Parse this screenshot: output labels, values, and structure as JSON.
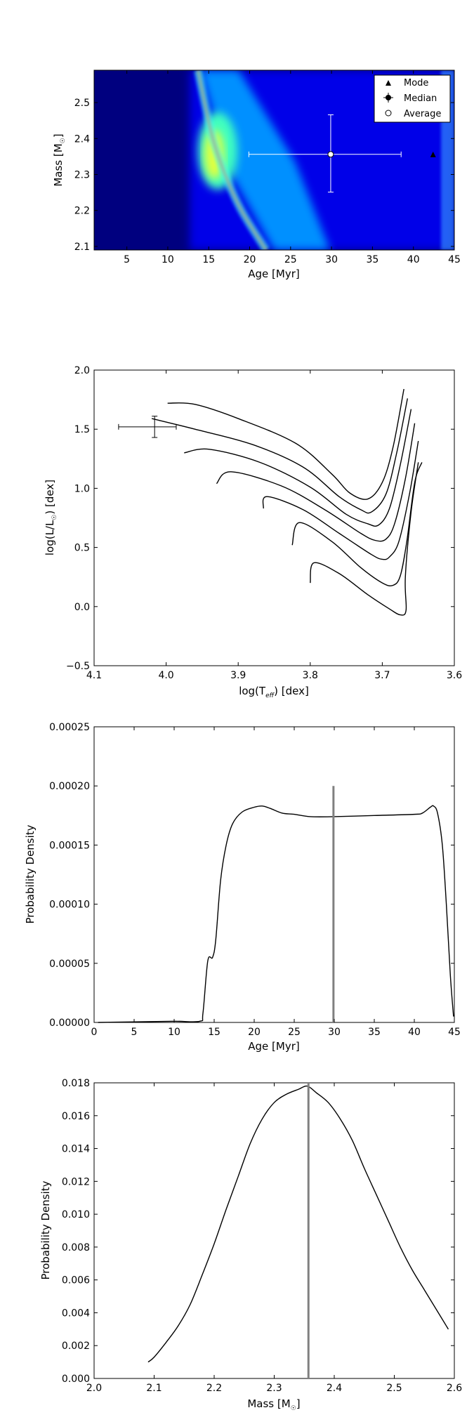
{
  "figure": {
    "background": "#ffffff"
  },
  "chart_data": [
    {
      "type": "heatmap",
      "xlabel": "Age [Myr]",
      "ylabel_main": "Mass [M",
      "ylabel_sub": "☉",
      "ylabel_close": "]",
      "xlim": [
        1,
        45
      ],
      "ylim": [
        2.09,
        2.59
      ],
      "xticks": [
        5,
        10,
        15,
        20,
        25,
        30,
        35,
        40,
        45
      ],
      "xtick_labels": [
        "5",
        "10",
        "15",
        "20",
        "25",
        "30",
        "35",
        "40",
        "45"
      ],
      "yticks": [
        2.1,
        2.2,
        2.3,
        2.4,
        2.5
      ],
      "ytick_labels": [
        "2.1",
        "2.2",
        "2.3",
        "2.4",
        "2.5"
      ],
      "colormap": [
        "#00007f",
        "#0000ff",
        "#0080ff",
        "#00ffff",
        "#80ff80",
        "#ffff00",
        "#ff8000",
        "#ff0000",
        "#7f0000"
      ],
      "ridge": [
        [
          13.7,
          2.59
        ],
        [
          14.5,
          2.5
        ],
        [
          15.5,
          2.4
        ],
        [
          17.0,
          2.3
        ],
        [
          19.0,
          2.2
        ],
        [
          22.0,
          2.09
        ]
      ],
      "legend": {
        "position": "top-right",
        "entries": [
          {
            "label": "Mode",
            "marker": "triangle"
          },
          {
            "label": "Median",
            "marker": "errorbar-dot"
          },
          {
            "label": "Average",
            "marker": "open-circle"
          }
        ]
      },
      "mode": {
        "x": 42.4,
        "y": 2.354
      },
      "median": {
        "x": 29.9,
        "y": 2.356,
        "xerr": [
          10.0,
          8.6
        ],
        "yerr": [
          0.105,
          0.11
        ]
      },
      "average": {
        "x": 29.9,
        "y": 2.356
      }
    },
    {
      "type": "line",
      "xlabel_main": "log(T",
      "xlabel_sub": "eff",
      "xlabel_close": ") [dex]",
      "ylabel_main": "log(L/L",
      "ylabel_sub": "☉",
      "ylabel_close": ") [dex]",
      "xlim": [
        4.1,
        3.6
      ],
      "ylim": [
        -0.5,
        2.0
      ],
      "xticks": [
        4.1,
        4.0,
        3.9,
        3.8,
        3.7,
        3.6
      ],
      "xtick_labels": [
        "4.1",
        "4.0",
        "3.9",
        "3.8",
        "3.7",
        "3.6"
      ],
      "yticks": [
        -0.5,
        0.0,
        0.5,
        1.0,
        1.5,
        2.0
      ],
      "ytick_labels": [
        "−0.5",
        "0.0",
        "0.5",
        "1.0",
        "1.5",
        "2.0"
      ],
      "series": [
        {
          "points": [
            [
              3.998,
              1.72
            ],
            [
              3.96,
              1.71
            ],
            [
              3.9,
              1.59
            ],
            [
              3.82,
              1.38
            ],
            [
              3.77,
              1.12
            ],
            [
              3.745,
              0.96
            ],
            [
              3.72,
              0.91
            ],
            [
              3.7,
              1.05
            ],
            [
              3.685,
              1.35
            ],
            [
              3.67,
              1.84
            ]
          ]
        },
        {
          "points": [
            [
              4.02,
              1.59
            ],
            [
              3.96,
              1.5
            ],
            [
              3.88,
              1.37
            ],
            [
              3.81,
              1.18
            ],
            [
              3.76,
              0.93
            ],
            [
              3.73,
              0.82
            ],
            [
              3.715,
              0.8
            ],
            [
              3.695,
              0.95
            ],
            [
              3.68,
              1.3
            ],
            [
              3.665,
              1.76
            ]
          ]
        },
        {
          "points": [
            [
              3.975,
              1.3
            ],
            [
              3.94,
              1.33
            ],
            [
              3.87,
              1.22
            ],
            [
              3.8,
              1.01
            ],
            [
              3.75,
              0.78
            ],
            [
              3.72,
              0.7
            ],
            [
              3.705,
              0.69
            ],
            [
              3.69,
              0.83
            ],
            [
              3.675,
              1.2
            ],
            [
              3.66,
              1.67
            ]
          ]
        },
        {
          "points": [
            [
              3.93,
              1.04
            ],
            [
              3.91,
              1.14
            ],
            [
              3.84,
              1.02
            ],
            [
              3.78,
              0.82
            ],
            [
              3.73,
              0.62
            ],
            [
              3.71,
              0.56
            ],
            [
              3.695,
              0.57
            ],
            [
              3.683,
              0.7
            ],
            [
              3.668,
              1.08
            ],
            [
              3.655,
              1.55
            ]
          ]
        },
        {
          "points": [
            [
              3.865,
              0.83
            ],
            [
              3.86,
              0.93
            ],
            [
              3.81,
              0.82
            ],
            [
              3.76,
              0.62
            ],
            [
              3.715,
              0.44
            ],
            [
              3.7,
              0.4
            ],
            [
              3.69,
              0.42
            ],
            [
              3.677,
              0.55
            ],
            [
              3.662,
              0.96
            ],
            [
              3.65,
              1.4
            ]
          ]
        },
        {
          "points": [
            [
              3.825,
              0.52
            ],
            [
              3.815,
              0.71
            ],
            [
              3.77,
              0.55
            ],
            [
              3.73,
              0.33
            ],
            [
              3.7,
              0.2
            ],
            [
              3.685,
              0.18
            ],
            [
              3.675,
              0.26
            ],
            [
              3.666,
              0.55
            ],
            [
              3.655,
              1.05
            ],
            [
              3.645,
              1.22
            ]
          ]
        },
        {
          "points": [
            [
              3.8,
              0.2
            ],
            [
              3.795,
              0.37
            ],
            [
              3.76,
              0.28
            ],
            [
              3.72,
              0.1
            ],
            [
              3.69,
              -0.02
            ],
            [
              3.675,
              -0.07
            ],
            [
              3.667,
              -0.03
            ],
            [
              3.668,
              0.25
            ],
            [
              3.66,
              0.8
            ],
            [
              3.65,
              1.22
            ]
          ]
        }
      ],
      "star": {
        "x": 4.016,
        "y": 1.52,
        "xerr": [
          0.05,
          0.03
        ],
        "yerr": [
          0.09,
          0.09
        ]
      }
    },
    {
      "type": "line",
      "xlabel": "Age [Myr]",
      "ylabel": "Probability Density",
      "xlim": [
        0,
        45
      ],
      "ylim": [
        0,
        0.00025
      ],
      "xticks": [
        0,
        5,
        10,
        15,
        20,
        25,
        30,
        35,
        40,
        45
      ],
      "xtick_labels": [
        "0",
        "5",
        "10",
        "15",
        "20",
        "25",
        "30",
        "35",
        "40",
        "45"
      ],
      "yticks": [
        0,
        5e-05,
        0.0001,
        0.00015,
        0.0002,
        0.00025
      ],
      "ytick_labels": [
        "0.00000",
        "0.00005",
        "0.00010",
        "0.00015",
        "0.00020",
        "0.00025"
      ],
      "points": [
        [
          0.5,
          0.0
        ],
        [
          5,
          5e-07
        ],
        [
          10,
          1e-06
        ],
        [
          13.2,
          1e-06
        ],
        [
          13.6,
          8e-06
        ],
        [
          14.2,
          5.2e-05
        ],
        [
          14.8,
          5.5e-05
        ],
        [
          15.2,
          7e-05
        ],
        [
          15.8,
          0.00012
        ],
        [
          16.5,
          0.00015
        ],
        [
          17.3,
          0.000168
        ],
        [
          18.5,
          0.000178
        ],
        [
          20,
          0.000182
        ],
        [
          21,
          0.000183
        ],
        [
          22,
          0.000181
        ],
        [
          23.5,
          0.000177
        ],
        [
          25,
          0.000176
        ],
        [
          27,
          0.000174
        ],
        [
          30,
          0.000174
        ],
        [
          35,
          0.000175
        ],
        [
          40,
          0.000176
        ],
        [
          41,
          0.000177
        ],
        [
          42,
          0.000182
        ],
        [
          42.4,
          0.000183
        ],
        [
          42.9,
          0.000177
        ],
        [
          43.5,
          0.00015
        ],
        [
          44.0,
          0.0001
        ],
        [
          44.5,
          4e-05
        ],
        [
          44.9,
          5e-06
        ]
      ],
      "vline": {
        "x": 29.9,
        "y_top": 0.0002,
        "color": "#808080"
      }
    },
    {
      "type": "line",
      "xlabel_main": "Mass [M",
      "xlabel_sub": "☉",
      "xlabel_close": "]",
      "ylabel": "Probability Density",
      "xlim": [
        2.0,
        2.6
      ],
      "ylim": [
        0,
        0.018
      ],
      "xticks": [
        2.0,
        2.1,
        2.2,
        2.3,
        2.4,
        2.5,
        2.6
      ],
      "xtick_labels": [
        "2.0",
        "2.1",
        "2.2",
        "2.3",
        "2.4",
        "2.5",
        "2.6"
      ],
      "yticks": [
        0,
        0.002,
        0.004,
        0.006,
        0.008,
        0.01,
        0.012,
        0.014,
        0.016,
        0.018
      ],
      "ytick_labels": [
        "0.000",
        "0.002",
        "0.004",
        "0.006",
        "0.008",
        "0.010",
        "0.012",
        "0.014",
        "0.016",
        "0.018"
      ],
      "points": [
        [
          2.09,
          0.001
        ],
        [
          2.1,
          0.0013
        ],
        [
          2.12,
          0.0022
        ],
        [
          2.14,
          0.0032
        ],
        [
          2.16,
          0.0045
        ],
        [
          2.18,
          0.0063
        ],
        [
          2.2,
          0.0082
        ],
        [
          2.22,
          0.0103
        ],
        [
          2.24,
          0.0123
        ],
        [
          2.26,
          0.0143
        ],
        [
          2.28,
          0.0158
        ],
        [
          2.3,
          0.0168
        ],
        [
          2.32,
          0.0173
        ],
        [
          2.34,
          0.0176
        ],
        [
          2.355,
          0.0178
        ],
        [
          2.37,
          0.0174
        ],
        [
          2.39,
          0.0168
        ],
        [
          2.41,
          0.0158
        ],
        [
          2.43,
          0.0145
        ],
        [
          2.45,
          0.0128
        ],
        [
          2.47,
          0.0112
        ],
        [
          2.49,
          0.0096
        ],
        [
          2.51,
          0.008
        ],
        [
          2.53,
          0.0066
        ],
        [
          2.55,
          0.0054
        ],
        [
          2.57,
          0.0042
        ],
        [
          2.59,
          0.003
        ]
      ],
      "vline": {
        "x": 2.357,
        "y_top": 0.018,
        "color": "#808080"
      }
    }
  ]
}
